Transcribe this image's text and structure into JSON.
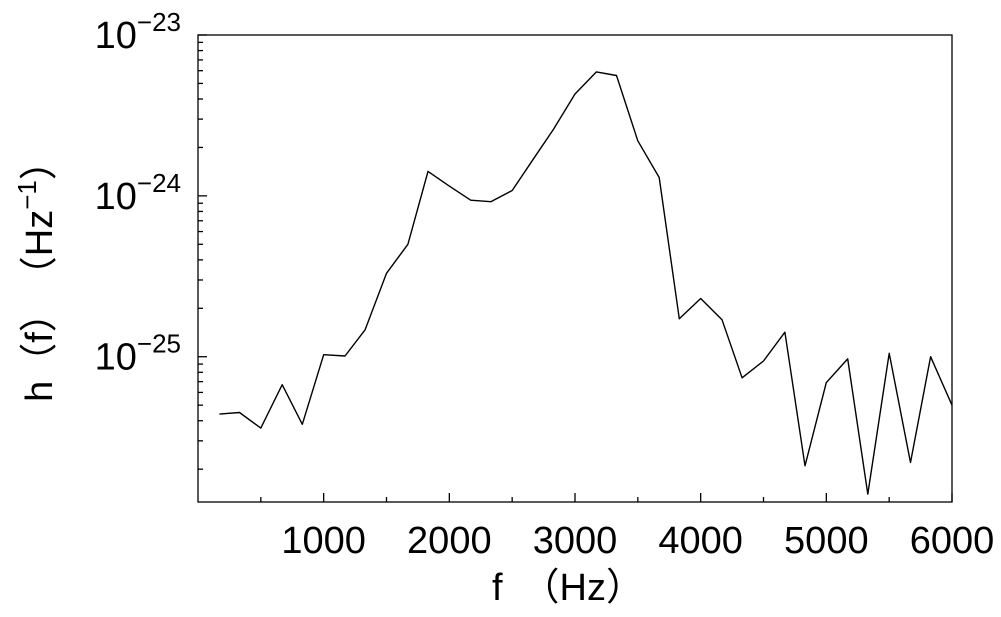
{
  "chart_data": {
    "type": "line",
    "title": "",
    "xlabel": "f　（Hz）",
    "ylabel_main": "h（f）　（Hz",
    "ylabel_sup": "−1",
    "ylabel_close": "）",
    "x_scale": "linear",
    "y_scale": "log",
    "xlim": [
      0,
      6000
    ],
    "ylim": [
      1.25e-26,
      1e-23
    ],
    "x_ticks": [
      {
        "value": 1000,
        "label": "1000"
      },
      {
        "value": 2000,
        "label": "2000"
      },
      {
        "value": 3000,
        "label": "3000"
      },
      {
        "value": 4000,
        "label": "4000"
      },
      {
        "value": 5000,
        "label": "5000"
      },
      {
        "value": 6000,
        "label": "6000"
      }
    ],
    "y_ticks": [
      {
        "value": 1e-25,
        "base": "10",
        "exp": "−25"
      },
      {
        "value": 1e-24,
        "base": "10",
        "exp": "−24"
      },
      {
        "value": 1e-23,
        "base": "10",
        "exp": "−23"
      }
    ],
    "grid": false,
    "series": [
      {
        "color": "#000000",
        "x": [
          170,
          330,
          500,
          670,
          830,
          1000,
          1170,
          1330,
          1500,
          1670,
          1830,
          2000,
          2170,
          2330,
          2500,
          2670,
          2830,
          3000,
          3170,
          3330,
          3500,
          3670,
          3830,
          4000,
          4170,
          4330,
          4500,
          4670,
          4830,
          5000,
          5170,
          5330,
          5500,
          5670,
          5830,
          6000
        ],
        "y": [
          4.4e-26,
          4.5e-26,
          3.6e-26,
          6.7e-26,
          3.8e-26,
          1.03e-25,
          1.01e-25,
          1.47e-25,
          3.3e-25,
          5e-25,
          1.42e-24,
          1.15e-24,
          9.4e-25,
          9.2e-25,
          1.08e-24,
          1.7e-24,
          2.6e-24,
          4.3e-24,
          5.9e-24,
          5.6e-24,
          2.2e-24,
          1.3e-24,
          1.72e-25,
          2.3e-25,
          1.7e-25,
          7.4e-26,
          9.4e-26,
          1.42e-25,
          2.1e-26,
          6.9e-26,
          9.7e-26,
          1.4e-26,
          1.05e-25,
          2.2e-26,
          1e-25,
          5e-26
        ]
      }
    ]
  }
}
